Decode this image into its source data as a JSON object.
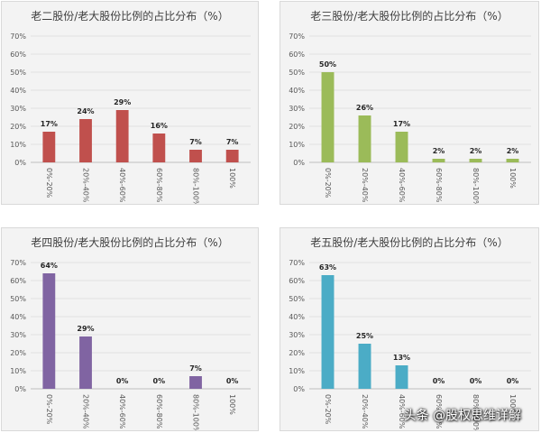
{
  "chart_data": [
    {
      "type": "bar",
      "title": "老二股份/老大股份比例的占比分布（%）",
      "categories": [
        "0%-20%",
        "20%-40%",
        "40%-60%",
        "60%-80%",
        "80%-100%",
        "100%"
      ],
      "values": [
        17,
        24,
        29,
        16,
        7,
        7
      ],
      "value_labels": [
        "17%",
        "24%",
        "29%",
        "16%",
        "7%",
        "7%"
      ],
      "ylim": [
        0,
        70
      ],
      "yticks": [
        "0%",
        "10%",
        "20%",
        "30%",
        "40%",
        "50%",
        "60%",
        "70%"
      ],
      "color": "#c0504d"
    },
    {
      "type": "bar",
      "title": "老三股份/老大股份比例的占比分布（%）",
      "categories": [
        "0%-20%",
        "20%-40%",
        "40%-60%",
        "60%-80%",
        "80%-100%",
        "100%"
      ],
      "values": [
        50,
        26,
        17,
        2,
        2,
        2
      ],
      "value_labels": [
        "50%",
        "26%",
        "17%",
        "2%",
        "2%",
        "2%"
      ],
      "ylim": [
        0,
        70
      ],
      "yticks": [
        "0%",
        "10%",
        "20%",
        "30%",
        "40%",
        "50%",
        "60%",
        "70%"
      ],
      "color": "#9bbb59"
    },
    {
      "type": "bar",
      "title": "老四股份/老大股份比例的占比分布（%）",
      "categories": [
        "0%-20%",
        "20%-40%",
        "40%-60%",
        "60%-80%",
        "80%-100%",
        "100%"
      ],
      "values": [
        64,
        29,
        0,
        0,
        7,
        0
      ],
      "value_labels": [
        "64%",
        "29%",
        "0%",
        "0%",
        "7%",
        "0%"
      ],
      "ylim": [
        0,
        70
      ],
      "yticks": [
        "0%",
        "10%",
        "20%",
        "30%",
        "40%",
        "50%",
        "60%",
        "70%"
      ],
      "color": "#8064a2"
    },
    {
      "type": "bar",
      "title": "老五股份/老大股份比例的占比分布（%）",
      "categories": [
        "0%-20%",
        "20%-40%",
        "40%-60%",
        "60%-80%",
        "80%-100%",
        "100%"
      ],
      "values": [
        63,
        25,
        13,
        0,
        0,
        0
      ],
      "value_labels": [
        "63%",
        "25%",
        "13%",
        "0%",
        "0%",
        "0%"
      ],
      "ylim": [
        0,
        70
      ],
      "yticks": [
        "0%",
        "10%",
        "20%",
        "30%",
        "40%",
        "50%",
        "60%",
        "70%"
      ],
      "color": "#4bacc6"
    }
  ],
  "watermark": "头条 @股权思维详解"
}
